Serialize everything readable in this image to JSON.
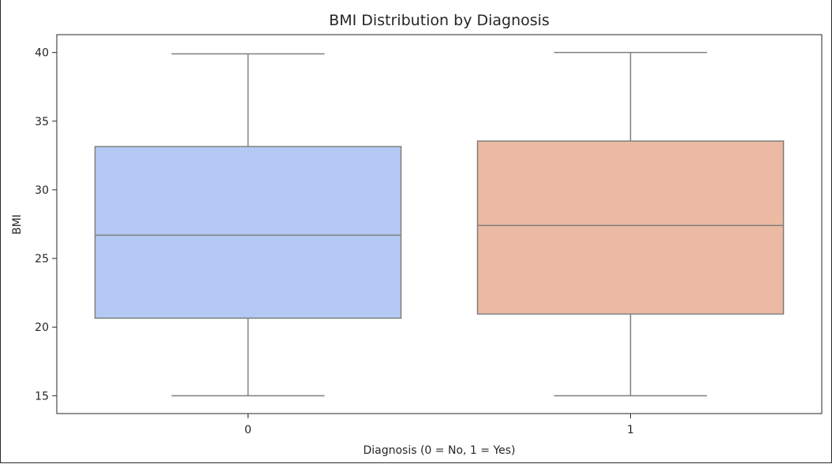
{
  "chart_data": {
    "type": "box",
    "title": "BMI Distribution by Diagnosis",
    "xlabel": "Diagnosis (0 = No, 1 = Yes)",
    "ylabel": "BMI",
    "categories": [
      "0",
      "1"
    ],
    "ylim": [
      13.7,
      41.3
    ],
    "yticks": [
      15,
      20,
      25,
      30,
      35,
      40
    ],
    "ytick_labels": [
      "15",
      "20",
      "25",
      "30",
      "35",
      "40"
    ],
    "boxes": [
      {
        "category": "0",
        "min": 15.0,
        "q1": 20.65,
        "median": 26.7,
        "q3": 33.15,
        "max": 39.9,
        "color": "#b4c9f3"
      },
      {
        "category": "1",
        "min": 15.0,
        "q1": 20.95,
        "median": 27.4,
        "q3": 33.55,
        "max": 40.0,
        "color": "#ecb9a2"
      }
    ],
    "line_color": "#7f7f7f"
  }
}
